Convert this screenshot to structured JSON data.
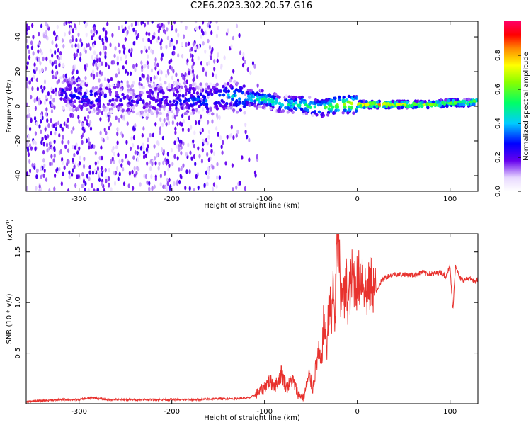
{
  "title": "C2E6.2023.302.20.57.G16",
  "chart_data": [
    {
      "type": "heatmap",
      "xlabel": "Height of straight line (km)",
      "ylabel": "Frequency (Hz)",
      "xlim": [
        -357,
        130
      ],
      "ylim": [
        -49,
        49
      ],
      "xticks": [
        -300,
        -200,
        -100,
        0,
        100
      ],
      "xtick_labels": [
        "-300",
        "-200",
        "-100",
        "0",
        "100"
      ],
      "yticks": [
        -40,
        -20,
        0,
        20,
        40
      ],
      "ytick_labels": [
        "-40",
        "-20",
        "0",
        "20",
        "40"
      ],
      "colorbar": {
        "label": "Normalized spectral amplitude",
        "range": [
          0,
          1
        ],
        "ticks": [
          0.0,
          0.2,
          0.4,
          0.6,
          0.8
        ],
        "tick_labels": [
          "0.0",
          "0.2",
          "0.4",
          "0.6",
          "0.8"
        ],
        "colormap": "rainbow (white-purple-blue-cyan-green-yellow-red-magenta)"
      },
      "ridge": {
        "x": [
          -320,
          -300,
          -280,
          -260,
          -240,
          -220,
          -200,
          -180,
          -160,
          -140,
          -120,
          -100,
          -80,
          -60,
          -40,
          -30,
          -20,
          -10,
          0,
          20,
          40,
          60,
          80,
          100,
          120,
          130
        ],
        "y": [
          8,
          6,
          4,
          5,
          3,
          4,
          5,
          4,
          4,
          6,
          5,
          4,
          1,
          1,
          -1,
          0,
          1,
          1,
          1,
          1,
          1,
          1,
          1,
          2,
          2,
          3
        ],
        "amplitude": [
          0.25,
          0.3,
          0.25,
          0.25,
          0.22,
          0.25,
          0.28,
          0.3,
          0.32,
          0.38,
          0.45,
          0.5,
          0.45,
          0.5,
          0.55,
          0.6,
          0.7,
          0.75,
          0.82,
          0.82,
          0.78,
          0.72,
          0.68,
          0.65,
          0.62,
          0.6
        ]
      }
    },
    {
      "type": "line",
      "xlabel": "Height of straight line (km)",
      "ylabel": "SNR (10 * v/v)",
      "y_multiplier": "(x10",
      "y_multiplier_exp": "4",
      "y_multiplier_close": ")",
      "xlim": [
        -357,
        130
      ],
      "ylim": [
        0,
        1.68
      ],
      "xticks": [
        -300,
        -200,
        -100,
        0,
        100
      ],
      "xtick_labels": [
        "-300",
        "-200",
        "-100",
        "0",
        "100"
      ],
      "yticks": [
        0.5,
        1.0,
        1.5
      ],
      "ytick_labels": [
        "0.5",
        "1.0",
        "1.5"
      ],
      "color": "#e8322e",
      "series": [
        {
          "name": "SNR",
          "x": [
            -357,
            -340,
            -320,
            -300,
            -285,
            -270,
            -250,
            -230,
            -210,
            -190,
            -170,
            -150,
            -130,
            -115,
            -105,
            -95,
            -88,
            -82,
            -76,
            -70,
            -64,
            -58,
            -52,
            -48,
            -45,
            -42,
            -39,
            -36,
            -33,
            -30,
            -28,
            -26,
            -24,
            -22,
            -20,
            -18,
            -16,
            -14,
            -12,
            -10,
            -6,
            0,
            5,
            10,
            15,
            20,
            25,
            30,
            40,
            50,
            60,
            70,
            80,
            90,
            95,
            100,
            103,
            106,
            110,
            115,
            120,
            125,
            130
          ],
          "y": [
            0.02,
            0.03,
            0.04,
            0.04,
            0.06,
            0.04,
            0.04,
            0.04,
            0.04,
            0.04,
            0.04,
            0.05,
            0.05,
            0.06,
            0.12,
            0.22,
            0.18,
            0.3,
            0.16,
            0.24,
            0.1,
            0.06,
            0.28,
            0.15,
            0.34,
            0.5,
            0.38,
            0.85,
            0.55,
            1.1,
            0.7,
            1.2,
            0.8,
            1.6,
            1.68,
            0.9,
            1.25,
            1.0,
            1.2,
            1.0,
            1.25,
            1.2,
            1.3,
            1.08,
            1.2,
            1.1,
            1.2,
            1.25,
            1.28,
            1.28,
            1.27,
            1.3,
            1.28,
            1.3,
            1.26,
            1.35,
            0.92,
            1.38,
            1.24,
            1.22,
            1.24,
            1.21,
            1.22
          ]
        }
      ]
    }
  ]
}
